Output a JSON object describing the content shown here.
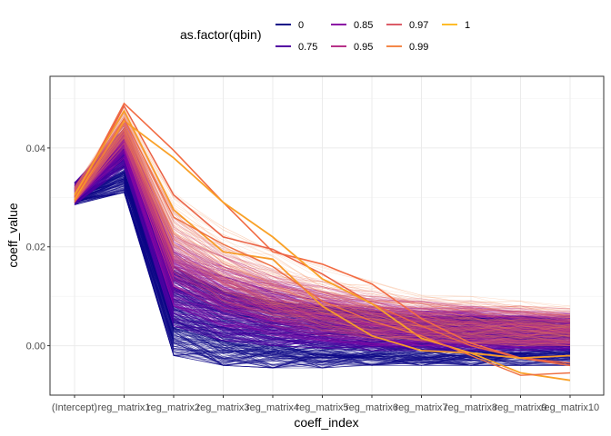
{
  "chart_data": {
    "type": "line",
    "xlabel": "coeff_index",
    "ylabel": "coeff_value",
    "categories": [
      "(Intercept)",
      "reg_matrix1",
      "reg_matrix2",
      "reg_matrix3",
      "reg_matrix4",
      "reg_matrix5",
      "reg_matrix6",
      "reg_matrix7",
      "reg_matrix8",
      "reg_matrix9",
      "reg_matrix10"
    ],
    "ylim": [
      -0.01,
      0.0545
    ],
    "yticks": [
      0,
      0.02,
      0.04
    ],
    "ytick_labels": [
      "0.00",
      "0.02",
      "0.04"
    ],
    "grid": true,
    "legend": {
      "title": "as.factor(qbin)",
      "placement": "top",
      "entries": [
        {
          "label": "0",
          "color": "#0d0887"
        },
        {
          "label": "0.75",
          "color": "#5302a3"
        },
        {
          "label": "0.85",
          "color": "#8b0aa5"
        },
        {
          "label": "0.95",
          "color": "#b83289"
        },
        {
          "label": "0.97",
          "color": "#db5c68"
        },
        {
          "label": "0.99",
          "color": "#f48849"
        },
        {
          "label": "1",
          "color": "#febc2a"
        }
      ]
    },
    "bands": [
      {
        "name": "0",
        "color": "#0d0887",
        "lower": [
          0.0285,
          0.031,
          -0.002,
          -0.004,
          -0.0045,
          -0.0045,
          -0.004,
          -0.004,
          -0.004,
          -0.004,
          -0.004
        ],
        "upper": [
          0.033,
          0.041,
          0.016,
          0.011,
          0.009,
          0.008,
          0.007,
          0.006,
          0.006,
          0.006,
          0.005
        ]
      },
      {
        "name": "0.75",
        "color": "#5302a3",
        "lower": [
          0.0285,
          0.036,
          0.004,
          0.001,
          0.0,
          -0.0005,
          -0.001,
          -0.001,
          -0.001,
          -0.001,
          -0.001
        ],
        "upper": [
          0.033,
          0.044,
          0.019,
          0.014,
          0.011,
          0.009,
          0.008,
          0.007,
          0.007,
          0.006,
          0.006
        ]
      },
      {
        "name": "0.85",
        "color": "#8b0aa5",
        "lower": [
          0.029,
          0.038,
          0.008,
          0.004,
          0.002,
          0.001,
          0.0,
          0.0,
          -0.0005,
          -0.0005,
          -0.0005
        ],
        "upper": [
          0.0325,
          0.045,
          0.021,
          0.016,
          0.013,
          0.011,
          0.009,
          0.008,
          0.008,
          0.007,
          0.0065
        ]
      },
      {
        "name": "0.95",
        "color": "#b83289",
        "lower": [
          0.029,
          0.04,
          0.012,
          0.007,
          0.004,
          0.002,
          0.001,
          0.0005,
          0.0,
          0.0,
          0.0
        ],
        "upper": [
          0.0325,
          0.046,
          0.024,
          0.018,
          0.014,
          0.012,
          0.01,
          0.009,
          0.008,
          0.0075,
          0.007
        ]
      },
      {
        "name": "0.97",
        "color": "#db5c68",
        "lower": [
          0.029,
          0.041,
          0.015,
          0.009,
          0.005,
          0.003,
          0.0015,
          0.001,
          0.0005,
          0.0,
          0.0
        ],
        "upper": [
          0.032,
          0.047,
          0.027,
          0.02,
          0.016,
          0.013,
          0.011,
          0.0095,
          0.009,
          0.008,
          0.0075
        ]
      },
      {
        "name": "0.99",
        "color": "#f48849",
        "lower": [
          0.029,
          0.042,
          0.018,
          0.011,
          0.006,
          0.004,
          0.002,
          0.001,
          0.0005,
          0.0,
          0.0
        ],
        "upper": [
          0.032,
          0.048,
          0.031,
          0.024,
          0.019,
          0.016,
          0.013,
          0.011,
          0.01,
          0.009,
          0.008
        ]
      }
    ],
    "series": [
      {
        "name": "0.99",
        "color": "#f26b43",
        "width": 1.6,
        "values": [
          0.03,
          0.049,
          0.0395,
          0.029,
          0.019,
          0.0165,
          0.0125,
          0.0055,
          0.0005,
          -0.0025,
          -0.004
        ]
      },
      {
        "name": "0.99",
        "color": "#ea6145",
        "width": 1.5,
        "values": [
          0.0295,
          0.0485,
          0.0305,
          0.022,
          0.0195,
          0.0145,
          0.0085,
          0.004,
          0.0,
          -0.0025,
          -0.0035
        ]
      },
      {
        "name": "1",
        "color": "#f9a127",
        "width": 1.8,
        "values": [
          0.0295,
          0.0455,
          0.038,
          0.029,
          0.022,
          0.0135,
          0.0085,
          0.0015,
          -0.0015,
          -0.0055,
          -0.007
        ]
      },
      {
        "name": "1",
        "color": "#f79b2a",
        "width": 1.8,
        "values": [
          0.0305,
          0.0475,
          0.0275,
          0.019,
          0.0175,
          0.008,
          0.002,
          -0.001,
          -0.0015,
          -0.0025,
          -0.002
        ]
      },
      {
        "name": "0.99",
        "color": "#ee7043",
        "width": 1.4,
        "values": [
          0.029,
          0.046,
          0.026,
          0.0205,
          0.016,
          0.009,
          0.005,
          0.002,
          -0.002,
          -0.006,
          -0.0055
        ]
      }
    ]
  }
}
